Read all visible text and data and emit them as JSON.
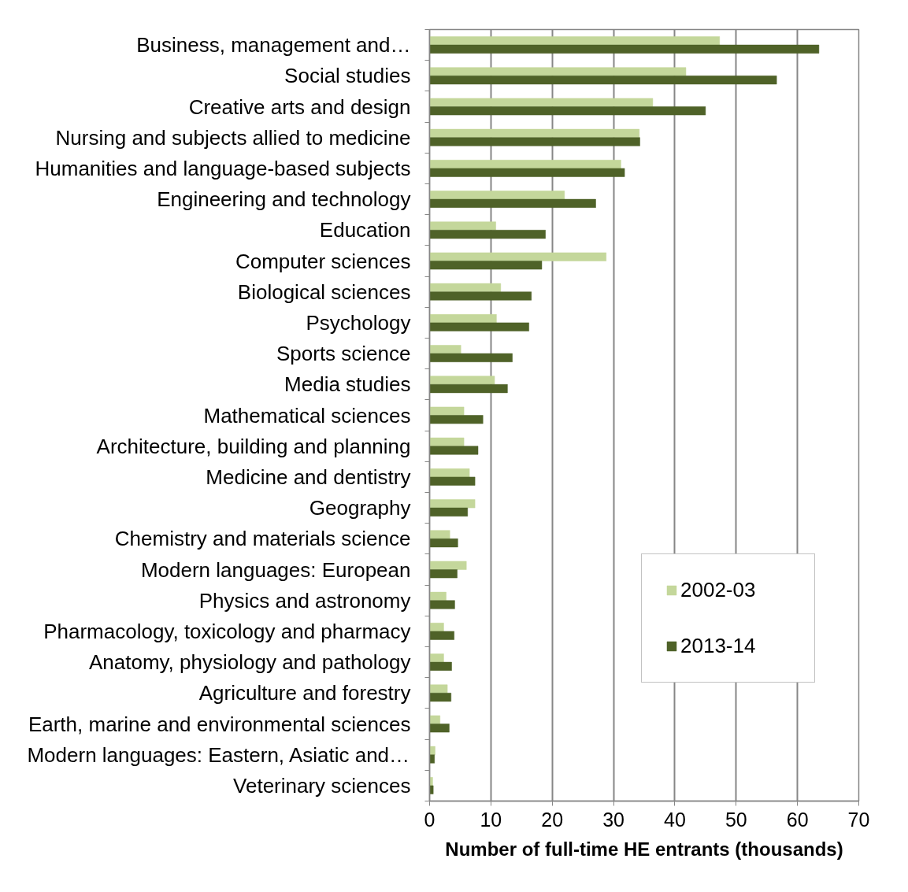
{
  "chart_data": {
    "type": "bar",
    "orientation": "horizontal",
    "xlabel": "Number of full-time HE entrants (thousands)",
    "categories": [
      "Business, management and…",
      "Social studies",
      "Creative arts and design",
      "Nursing and subjects allied to medicine",
      "Humanities and language-based subjects",
      "Engineering and technology",
      "Education",
      "Computer sciences",
      "Biological sciences",
      "Psychology",
      "Sports science",
      "Media studies",
      "Mathematical sciences",
      "Architecture, building and planning",
      "Medicine and dentistry",
      "Geography",
      "Chemistry and materials science",
      "Modern languages: European",
      "Physics and astronomy",
      "Pharmacology, toxicology and pharmacy",
      "Anatomy, physiology and pathology",
      "Agriculture and forestry",
      "Earth, marine and environmental sciences",
      "Modern languages: Eastern, Asiatic and…",
      "Veterinary sciences"
    ],
    "series": [
      {
        "name": "2002-03",
        "color": "#c4d79b",
        "values": [
          47.3,
          41.8,
          36.4,
          34.2,
          31.2,
          22.0,
          10.8,
          28.8,
          11.6,
          10.9,
          5.1,
          10.6,
          5.6,
          5.6,
          6.5,
          7.4,
          3.3,
          6.0,
          2.7,
          2.3,
          2.3,
          2.9,
          1.7,
          0.9,
          0.5
        ]
      },
      {
        "name": "2013-14",
        "color": "#4f6228",
        "values": [
          63.5,
          56.6,
          45.0,
          34.3,
          31.8,
          27.1,
          18.9,
          18.3,
          16.6,
          16.2,
          13.5,
          12.7,
          8.7,
          7.9,
          7.4,
          6.2,
          4.6,
          4.5,
          4.1,
          4.0,
          3.6,
          3.5,
          3.2,
          0.8,
          0.6
        ]
      }
    ],
    "xlim": [
      0,
      70
    ],
    "xticks": [
      0,
      10,
      20,
      30,
      40,
      50,
      60,
      70
    ],
    "grid": "x",
    "legend": "bottom right"
  }
}
